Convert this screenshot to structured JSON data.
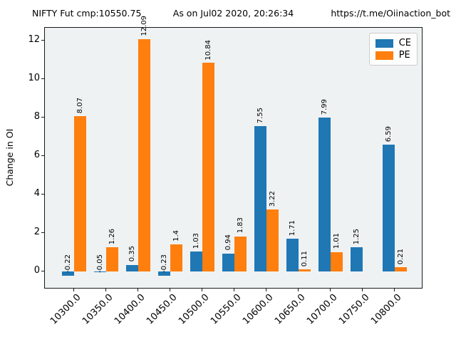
{
  "header": {
    "left": "NIFTY Fut cmp:10550.75",
    "center": "As on Jul02 2020, 20:26:34",
    "right": "https://t.me/Oiinaction_bot"
  },
  "chart_data": {
    "type": "bar",
    "title": "",
    "xlabel": "",
    "ylabel": "Change in OI",
    "categories": [
      "10300.0",
      "10350.0",
      "10400.0",
      "10450.0",
      "10500.0",
      "10550.0",
      "10600.0",
      "10650.0",
      "10700.0",
      "10750.0",
      "10800.0"
    ],
    "series": [
      {
        "name": "CE",
        "color": "#1f77b4",
        "values": [
          -0.22,
          -0.05,
          0.35,
          -0.23,
          1.03,
          0.94,
          7.55,
          1.71,
          7.99,
          1.25,
          6.59
        ]
      },
      {
        "name": "PE",
        "color": "#ff7f0e",
        "values": [
          8.07,
          1.26,
          12.09,
          1.4,
          10.84,
          1.83,
          3.22,
          0.11,
          1.01,
          null,
          0.21
        ]
      }
    ],
    "yticks": [
      0,
      2,
      4,
      6,
      8,
      10,
      12
    ],
    "ylim": [
      -0.93,
      12.67
    ],
    "grid": false,
    "bar_value_labels": true,
    "legend_position": "upper right",
    "colors": {
      "axes_background": "#eff2f3",
      "figure_background": "#ffffff",
      "spine": "#1a1a1a"
    }
  }
}
